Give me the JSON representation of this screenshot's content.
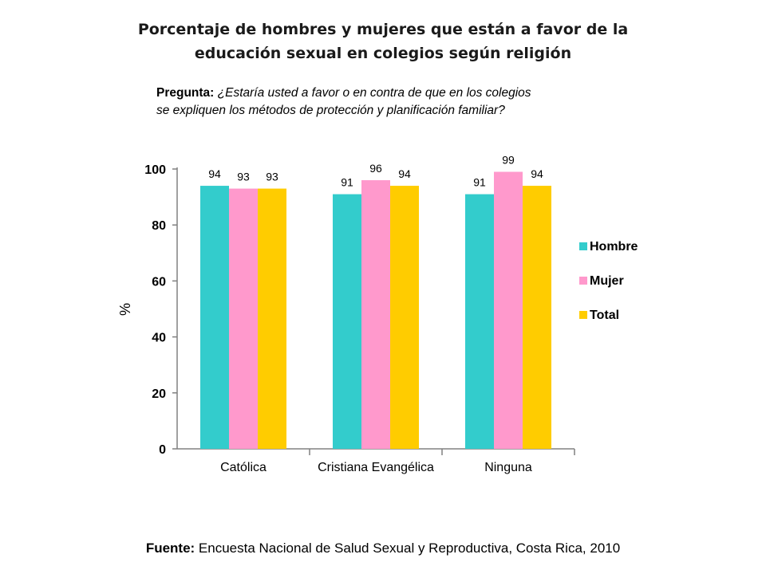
{
  "title_line1": "Porcentaje  de hombres y mujeres que están a favor de  la",
  "title_line2": "educación sexual en colegios según religión",
  "question": {
    "label": "Pregunta:",
    "line1": " ¿Estaría usted a favor o  en contra de que en los colegios",
    "line2": "se expliquen los métodos de protección y planificación familiar?"
  },
  "source": {
    "label": "Fuente:",
    "text": " Encuesta Nacional de Salud Sexual y Reproductiva, Costa Rica, 2010"
  },
  "chart_data": {
    "type": "bar",
    "categories": [
      "Católica",
      "Cristiana Evangélica",
      "Ninguna"
    ],
    "series": [
      {
        "name": "Hombre",
        "color": "#33CCCC",
        "values": [
          94,
          91,
          91
        ],
        "labels": [
          "94",
          "91",
          "91"
        ]
      },
      {
        "name": "Mujer",
        "color": "#FF99CC",
        "values": [
          93,
          96,
          99
        ],
        "labels": [
          "93",
          "96",
          "99"
        ]
      },
      {
        "name": "Total",
        "color": "#FFCC00",
        "values": [
          93,
          94,
          94
        ],
        "labels": [
          "93",
          "94",
          "94"
        ]
      }
    ],
    "ylabel": "%",
    "ylim": [
      0,
      100
    ],
    "yticks": [
      "0",
      "20",
      "40",
      "60",
      "80",
      "100"
    ],
    "grid": false,
    "legend": "right"
  }
}
